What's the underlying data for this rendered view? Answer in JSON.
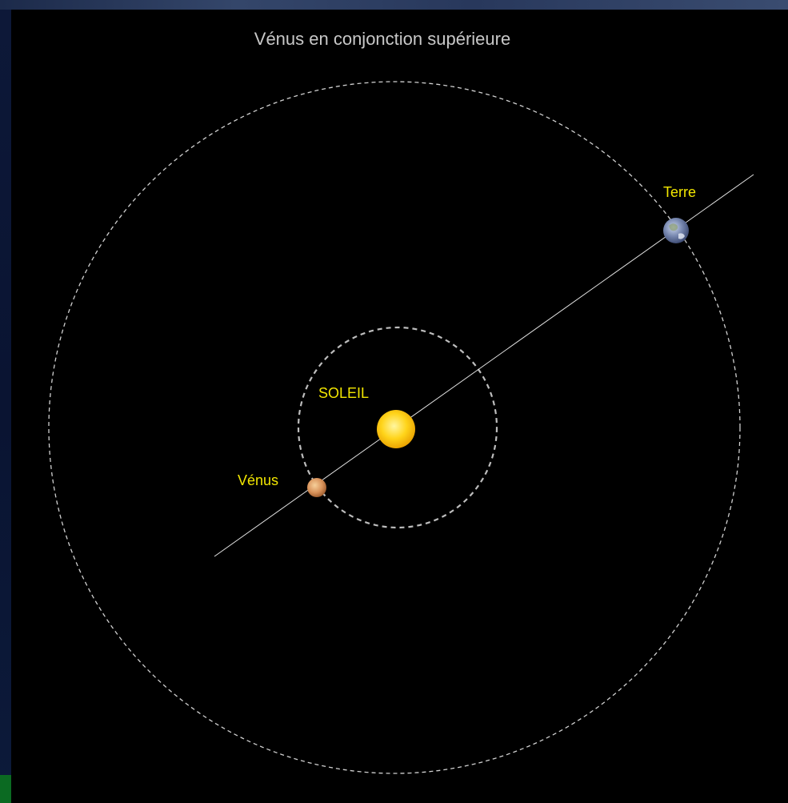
{
  "diagram": {
    "title": "Vénus en conjonction supérieure",
    "labels": {
      "sun": "SOLEIL",
      "venus": "Vénus",
      "earth": "Terre"
    },
    "colors": {
      "background": "#000000",
      "title": "#c8c8c8",
      "label": "#f2e600",
      "orbit": "#c8c8c8",
      "line": "#e0e0e0",
      "sun": "#ffd21e",
      "venus": "#e0a060",
      "earth": "#7a8cb4"
    },
    "icons": {
      "sun": "sun-icon",
      "venus": "venus-planet-icon",
      "earth": "earth-planet-icon"
    }
  }
}
